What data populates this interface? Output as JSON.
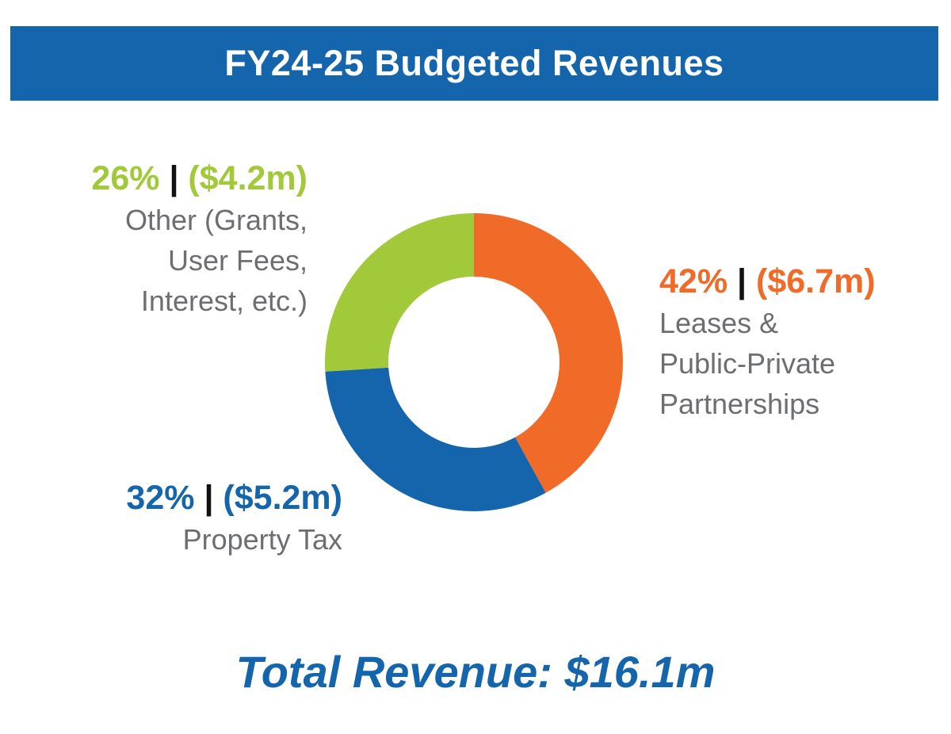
{
  "title": "FY24-25 Budgeted Revenues",
  "total_label": "Total Revenue: $16.1m",
  "separator": "|",
  "colors": {
    "banner": "#1565ad",
    "leases": "#f06a28",
    "property": "#1565ad",
    "other": "#a2c93a",
    "description": "#6d6e71"
  },
  "chart_data": {
    "type": "pie",
    "variant": "donut",
    "title": "FY24-25 Budgeted Revenues",
    "total": 16.1,
    "unit": "$m",
    "slices": [
      {
        "key": "leases",
        "percent": 42,
        "percent_label": "42%",
        "amount": 6.7,
        "amount_label": "($6.7m)",
        "description_lines": [
          "Leases &",
          "Public-Private",
          "Partnerships"
        ],
        "color": "#f06a28"
      },
      {
        "key": "property",
        "percent": 32,
        "percent_label": "32%",
        "amount": 5.2,
        "amount_label": "($5.2m)",
        "description_lines": [
          "Property Tax"
        ],
        "color": "#1565ad"
      },
      {
        "key": "other",
        "percent": 26,
        "percent_label": "26%",
        "amount": 4.2,
        "amount_label": "($4.2m)",
        "description_lines": [
          "Other (Grants,",
          "User Fees,",
          "Interest, etc.)"
        ],
        "color": "#a2c93a"
      }
    ]
  }
}
